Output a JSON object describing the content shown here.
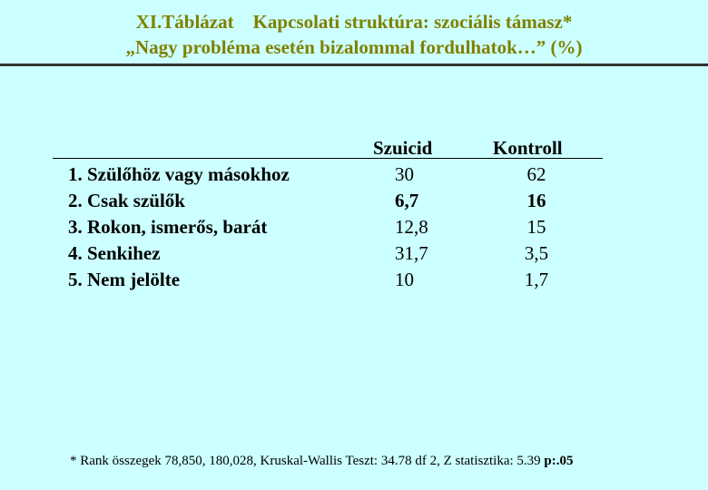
{
  "title": {
    "line1": "XI.Táblázat    Kapcsolati struktúra: szociális támasz*",
    "line2": "„Nagy probléma esetén bizalommal fordulhatok…” (%)"
  },
  "table": {
    "columns": [
      "Szuicid",
      "Kontroll"
    ],
    "rows": [
      {
        "label": "1. Szülőhöz vagy másokhoz",
        "szuicid": "30",
        "kontroll": "62"
      },
      {
        "label": "2. Csak szülők",
        "szuicid": "6,7",
        "kontroll": "16"
      },
      {
        "label": "3. Rokon, ismerős, barát",
        "szuicid": "12,8",
        "kontroll": "15"
      },
      {
        "label": "4. Senkihez",
        "szuicid": "31,7",
        "kontroll": "3,5"
      },
      {
        "label": "5. Nem jelölte",
        "szuicid": "10",
        "kontroll": "1,7"
      }
    ]
  },
  "footnote": {
    "text": "* Rank összegek 78,850, 180,028, Kruskal-Wallis Teszt: 34.78 df 2, Z statisztika: 5.39 ",
    "emphasis": "p:.05"
  },
  "colors": {
    "background": "#ccffff",
    "title": "#808000"
  }
}
